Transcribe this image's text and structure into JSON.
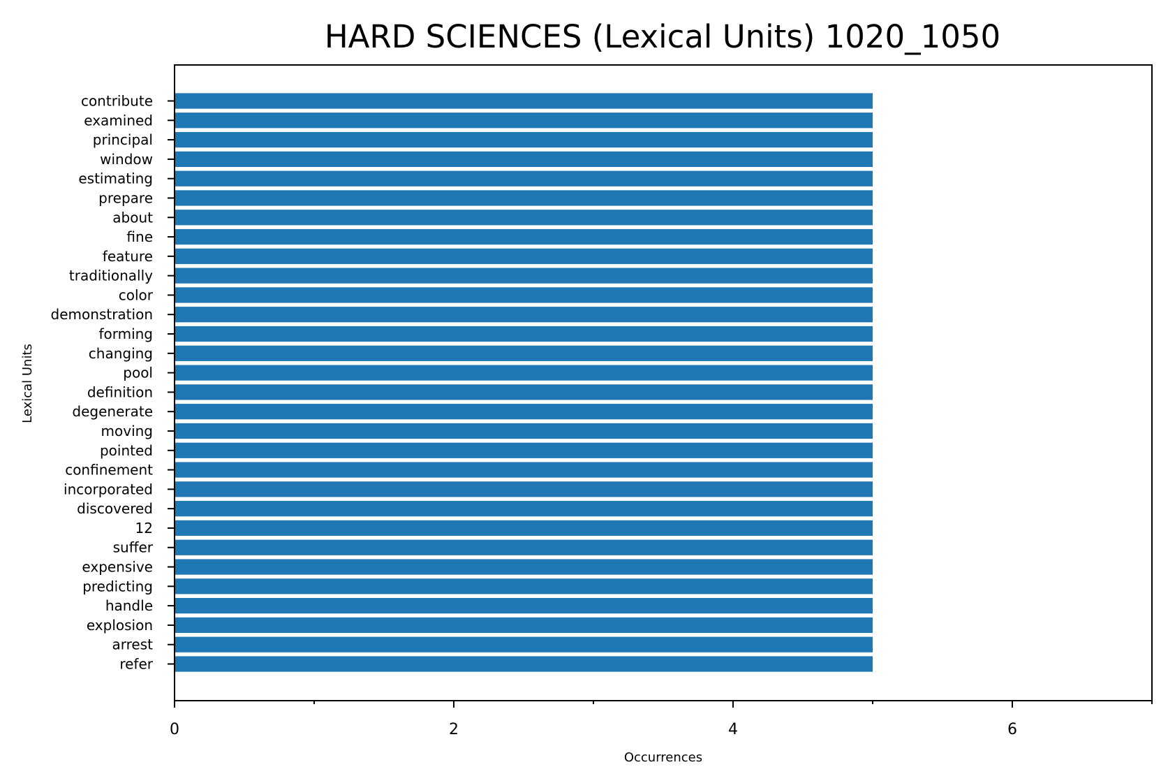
{
  "chart_data": {
    "type": "bar",
    "orientation": "horizontal",
    "title": "HARD SCIENCES (Lexical Units) 1020_1050",
    "xlabel": "Occurrences",
    "ylabel": "Lexical Units",
    "xlim": [
      0,
      7
    ],
    "x_ticks": [
      0,
      2,
      4,
      6
    ],
    "x_minor_ticks": [
      1,
      3,
      5,
      7
    ],
    "grid": false,
    "legend": "none",
    "bar_color": "#1f77b4",
    "categories": [
      "contribute",
      "examined",
      "principal",
      "window",
      "estimating",
      "prepare",
      "about",
      "fine",
      "feature",
      "traditionally",
      "color",
      "demonstration",
      "forming",
      "changing",
      "pool",
      "definition",
      "degenerate",
      "moving",
      "pointed",
      "confinement",
      "incorporated",
      "discovered",
      "12",
      "suffer",
      "expensive",
      "predicting",
      "handle",
      "explosion",
      "arrest",
      "refer"
    ],
    "values": [
      5,
      5,
      5,
      5,
      5,
      5,
      5,
      5,
      5,
      5,
      5,
      5,
      5,
      5,
      5,
      5,
      5,
      5,
      5,
      5,
      5,
      5,
      5,
      5,
      5,
      5,
      5,
      5,
      5,
      5
    ]
  }
}
